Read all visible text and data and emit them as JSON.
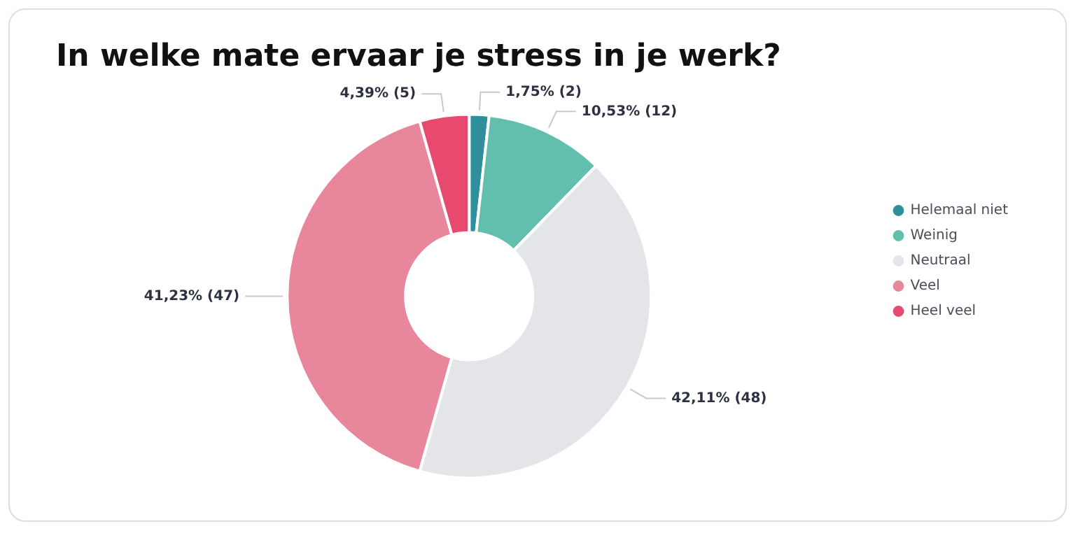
{
  "chart_data": {
    "type": "donut",
    "title": "In welke mate ervaar je stress in je werk?",
    "categories": [
      "Helemaal niet",
      "Weinig",
      "Neutraal",
      "Veel",
      "Heel veel"
    ],
    "values": [
      2,
      12,
      48,
      47,
      5
    ],
    "value_labels": [
      "1,75% (2)",
      "10,53% (12)",
      "42,11% (48)",
      "41,23% (47)",
      "4,39% (5)"
    ],
    "colors": [
      "#2f8f9d",
      "#62bfae",
      "#e4e5e9",
      "#e8879c",
      "#e84a6f"
    ],
    "legend": "right"
  }
}
